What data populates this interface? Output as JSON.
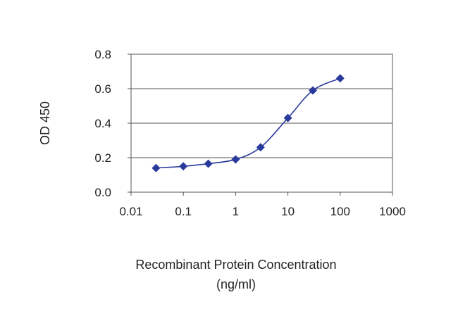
{
  "chart_data": {
    "type": "scatter",
    "title": "",
    "ylabel": "OD 450",
    "xlabel_line1": "Recombinant Protein Concentration",
    "xlabel_line2": "(ng/ml)",
    "x_scale": "log",
    "xlim": [
      0.01,
      1000
    ],
    "ylim": [
      0,
      0.8
    ],
    "x_ticks": [
      0.01,
      0.1,
      1,
      10,
      100,
      1000
    ],
    "x_tick_labels": [
      "0.01",
      "0.1",
      "1",
      "10",
      "100",
      "1000"
    ],
    "y_ticks": [
      0,
      0.2,
      0.4,
      0.6,
      0.8
    ],
    "y_tick_labels": [
      "0.0",
      "0.2",
      "0.4",
      "0.6",
      "0.8"
    ],
    "grid": "horizontal",
    "legend": "none",
    "series": [
      {
        "color": "#2a3a9c",
        "marker": "diamond",
        "x": [
          0.03,
          0.1,
          0.3,
          1,
          3,
          10,
          30,
          100
        ],
        "y": [
          0.14,
          0.15,
          0.165,
          0.19,
          0.26,
          0.43,
          0.59,
          0.66
        ]
      }
    ]
  }
}
